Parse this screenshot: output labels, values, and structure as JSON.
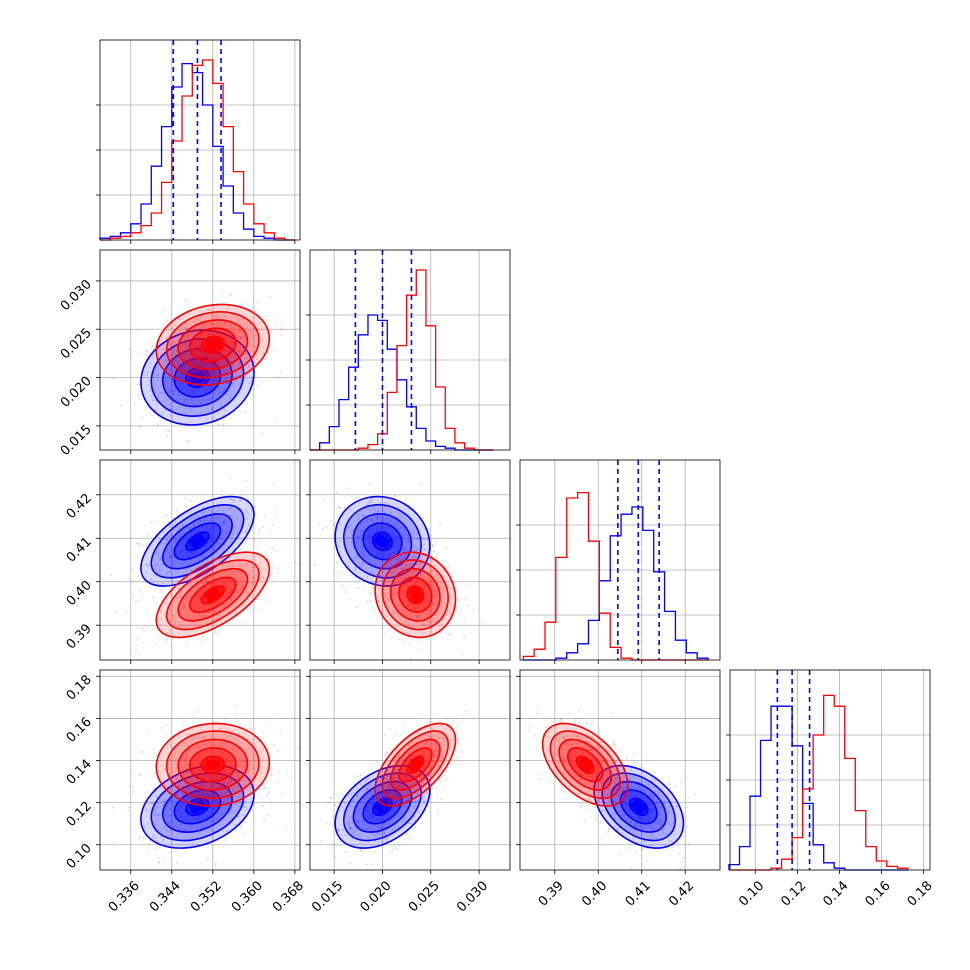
{
  "chart_data": {
    "type": "corner",
    "title": "",
    "grid": true,
    "legend": "none",
    "series": [
      {
        "color": "#ff0000"
      },
      {
        "color": "#0000ff"
      }
    ],
    "parameters": [
      {
        "range": [
          0.33,
          0.369
        ],
        "ticks": [
          0.336,
          0.344,
          0.352,
          0.36,
          0.368
        ],
        "tick_labels": [
          "0.336",
          "0.344",
          "0.352",
          "0.360",
          "0.368"
        ]
      },
      {
        "range": [
          0.0125,
          0.0332
        ],
        "ticks": [
          0.015,
          0.02,
          0.025,
          0.03
        ],
        "tick_labels": [
          "0.015",
          "0.020",
          "0.025",
          "0.030"
        ]
      },
      {
        "range": [
          0.382,
          0.428
        ],
        "ticks": [
          0.39,
          0.4,
          0.41,
          0.42
        ],
        "tick_labels": [
          "0.39",
          "0.40",
          "0.41",
          "0.42"
        ]
      },
      {
        "range": [
          0.088,
          0.183
        ],
        "ticks": [
          0.1,
          0.12,
          0.14,
          0.16,
          0.18
        ],
        "tick_labels": [
          "0.10",
          "0.12",
          "0.14",
          "0.16",
          "0.18"
        ]
      }
    ],
    "histograms": [
      {
        "bins": [
          0.331,
          0.333,
          0.335,
          0.337,
          0.339,
          0.341,
          0.343,
          0.345,
          0.347,
          0.349,
          0.351,
          0.353,
          0.355,
          0.357,
          0.359,
          0.361,
          0.363,
          0.365,
          0.367
        ],
        "red": [
          0,
          0.01,
          0.02,
          0.04,
          0.08,
          0.15,
          0.32,
          0.55,
          0.8,
          0.97,
          1.0,
          0.87,
          0.63,
          0.38,
          0.2,
          0.09,
          0.04,
          0.01,
          0
        ],
        "blue": [
          0.01,
          0.02,
          0.04,
          0.09,
          0.2,
          0.41,
          0.63,
          0.85,
          0.98,
          0.93,
          0.75,
          0.52,
          0.3,
          0.15,
          0.06,
          0.02,
          0.01,
          0,
          0
        ],
        "quantiles": [
          0.3443,
          0.349,
          0.3536
        ]
      },
      {
        "bins": [
          0.013,
          0.014,
          0.015,
          0.016,
          0.017,
          0.018,
          0.019,
          0.02,
          0.021,
          0.022,
          0.023,
          0.024,
          0.025,
          0.026,
          0.027,
          0.028,
          0.029,
          0.03,
          0.031
        ],
        "red": [
          0,
          0,
          0,
          0,
          0,
          0.01,
          0.03,
          0.09,
          0.32,
          0.58,
          0.86,
          1.0,
          0.69,
          0.35,
          0.12,
          0.04,
          0.01,
          0,
          0
        ],
        "blue": [
          0,
          0.04,
          0.13,
          0.28,
          0.46,
          0.64,
          0.75,
          0.72,
          0.56,
          0.39,
          0.24,
          0.12,
          0.05,
          0.02,
          0.01,
          0,
          0,
          0,
          0
        ],
        "quantiles": [
          0.0172,
          0.02,
          0.023
        ]
      },
      {
        "bins": [
          0.384,
          0.3865,
          0.389,
          0.3915,
          0.394,
          0.3965,
          0.399,
          0.4015,
          0.404,
          0.4065,
          0.409,
          0.4115,
          0.414,
          0.4165,
          0.419,
          0.4215,
          0.424
        ],
        "red": [
          0.02,
          0.06,
          0.21,
          0.57,
          0.9,
          0.93,
          0.66,
          0.26,
          0.07,
          0.01,
          0,
          0,
          0,
          0,
          0,
          0,
          0
        ],
        "blue": [
          0,
          0,
          0,
          0.01,
          0.04,
          0.09,
          0.22,
          0.44,
          0.69,
          0.81,
          0.85,
          0.72,
          0.49,
          0.27,
          0.11,
          0.04,
          0.01
        ],
        "quantiles": [
          0.4045,
          0.4092,
          0.414
        ]
      },
      {
        "bins": [
          0.09,
          0.095,
          0.1,
          0.105,
          0.11,
          0.115,
          0.12,
          0.125,
          0.13,
          0.135,
          0.14,
          0.145,
          0.15,
          0.155,
          0.16,
          0.165,
          0.17
        ],
        "red": [
          0,
          0,
          0,
          0,
          0.01,
          0.06,
          0.18,
          0.45,
          0.75,
          0.97,
          0.91,
          0.62,
          0.33,
          0.13,
          0.05,
          0.02,
          0.01
        ],
        "blue": [
          0.03,
          0.13,
          0.41,
          0.72,
          0.91,
          0.91,
          0.69,
          0.37,
          0.14,
          0.04,
          0.01,
          0,
          0,
          0,
          0,
          0,
          0
        ],
        "quantiles": [
          0.1105,
          0.1175,
          0.1258
        ]
      }
    ],
    "pairs": [
      {
        "row": 1,
        "col": 0,
        "red": {
          "mean": [
            0.352,
            0.0234
          ],
          "sd": [
            0.0045,
            0.0017
          ],
          "rho": 0.15
        },
        "blue": {
          "mean": [
            0.349,
            0.02
          ],
          "sd": [
            0.0045,
            0.002
          ],
          "rho": 0.1
        }
      },
      {
        "row": 2,
        "col": 0,
        "red": {
          "mean": [
            0.352,
            0.397
          ],
          "sd": [
            0.0045,
            0.004
          ],
          "rho": 0.6
        },
        "blue": {
          "mean": [
            0.349,
            0.4093
          ],
          "sd": [
            0.0045,
            0.0042
          ],
          "rho": 0.6
        }
      },
      {
        "row": 2,
        "col": 1,
        "red": {
          "mean": [
            0.0234,
            0.397
          ],
          "sd": [
            0.0017,
            0.004
          ],
          "rho": -0.1
        },
        "blue": {
          "mean": [
            0.02,
            0.4093
          ],
          "sd": [
            0.002,
            0.0042
          ],
          "rho": -0.1
        }
      },
      {
        "row": 3,
        "col": 0,
        "red": {
          "mean": [
            0.352,
            0.138
          ],
          "sd": [
            0.0045,
            0.008
          ],
          "rho": 0.05
        },
        "blue": {
          "mean": [
            0.349,
            0.118
          ],
          "sd": [
            0.0045,
            0.008
          ],
          "rho": 0.3
        }
      },
      {
        "row": 3,
        "col": 1,
        "red": {
          "mean": [
            0.0234,
            0.138
          ],
          "sd": [
            0.0017,
            0.008
          ],
          "rho": 0.6
        },
        "blue": {
          "mean": [
            0.02,
            0.118
          ],
          "sd": [
            0.002,
            0.008
          ],
          "rho": 0.4
        }
      },
      {
        "row": 3,
        "col": 2,
        "red": {
          "mean": [
            0.397,
            0.138
          ],
          "sd": [
            0.004,
            0.008
          ],
          "rho": -0.5
        },
        "blue": {
          "mean": [
            0.4093,
            0.118
          ],
          "sd": [
            0.0042,
            0.008
          ],
          "rho": -0.4
        }
      }
    ]
  }
}
